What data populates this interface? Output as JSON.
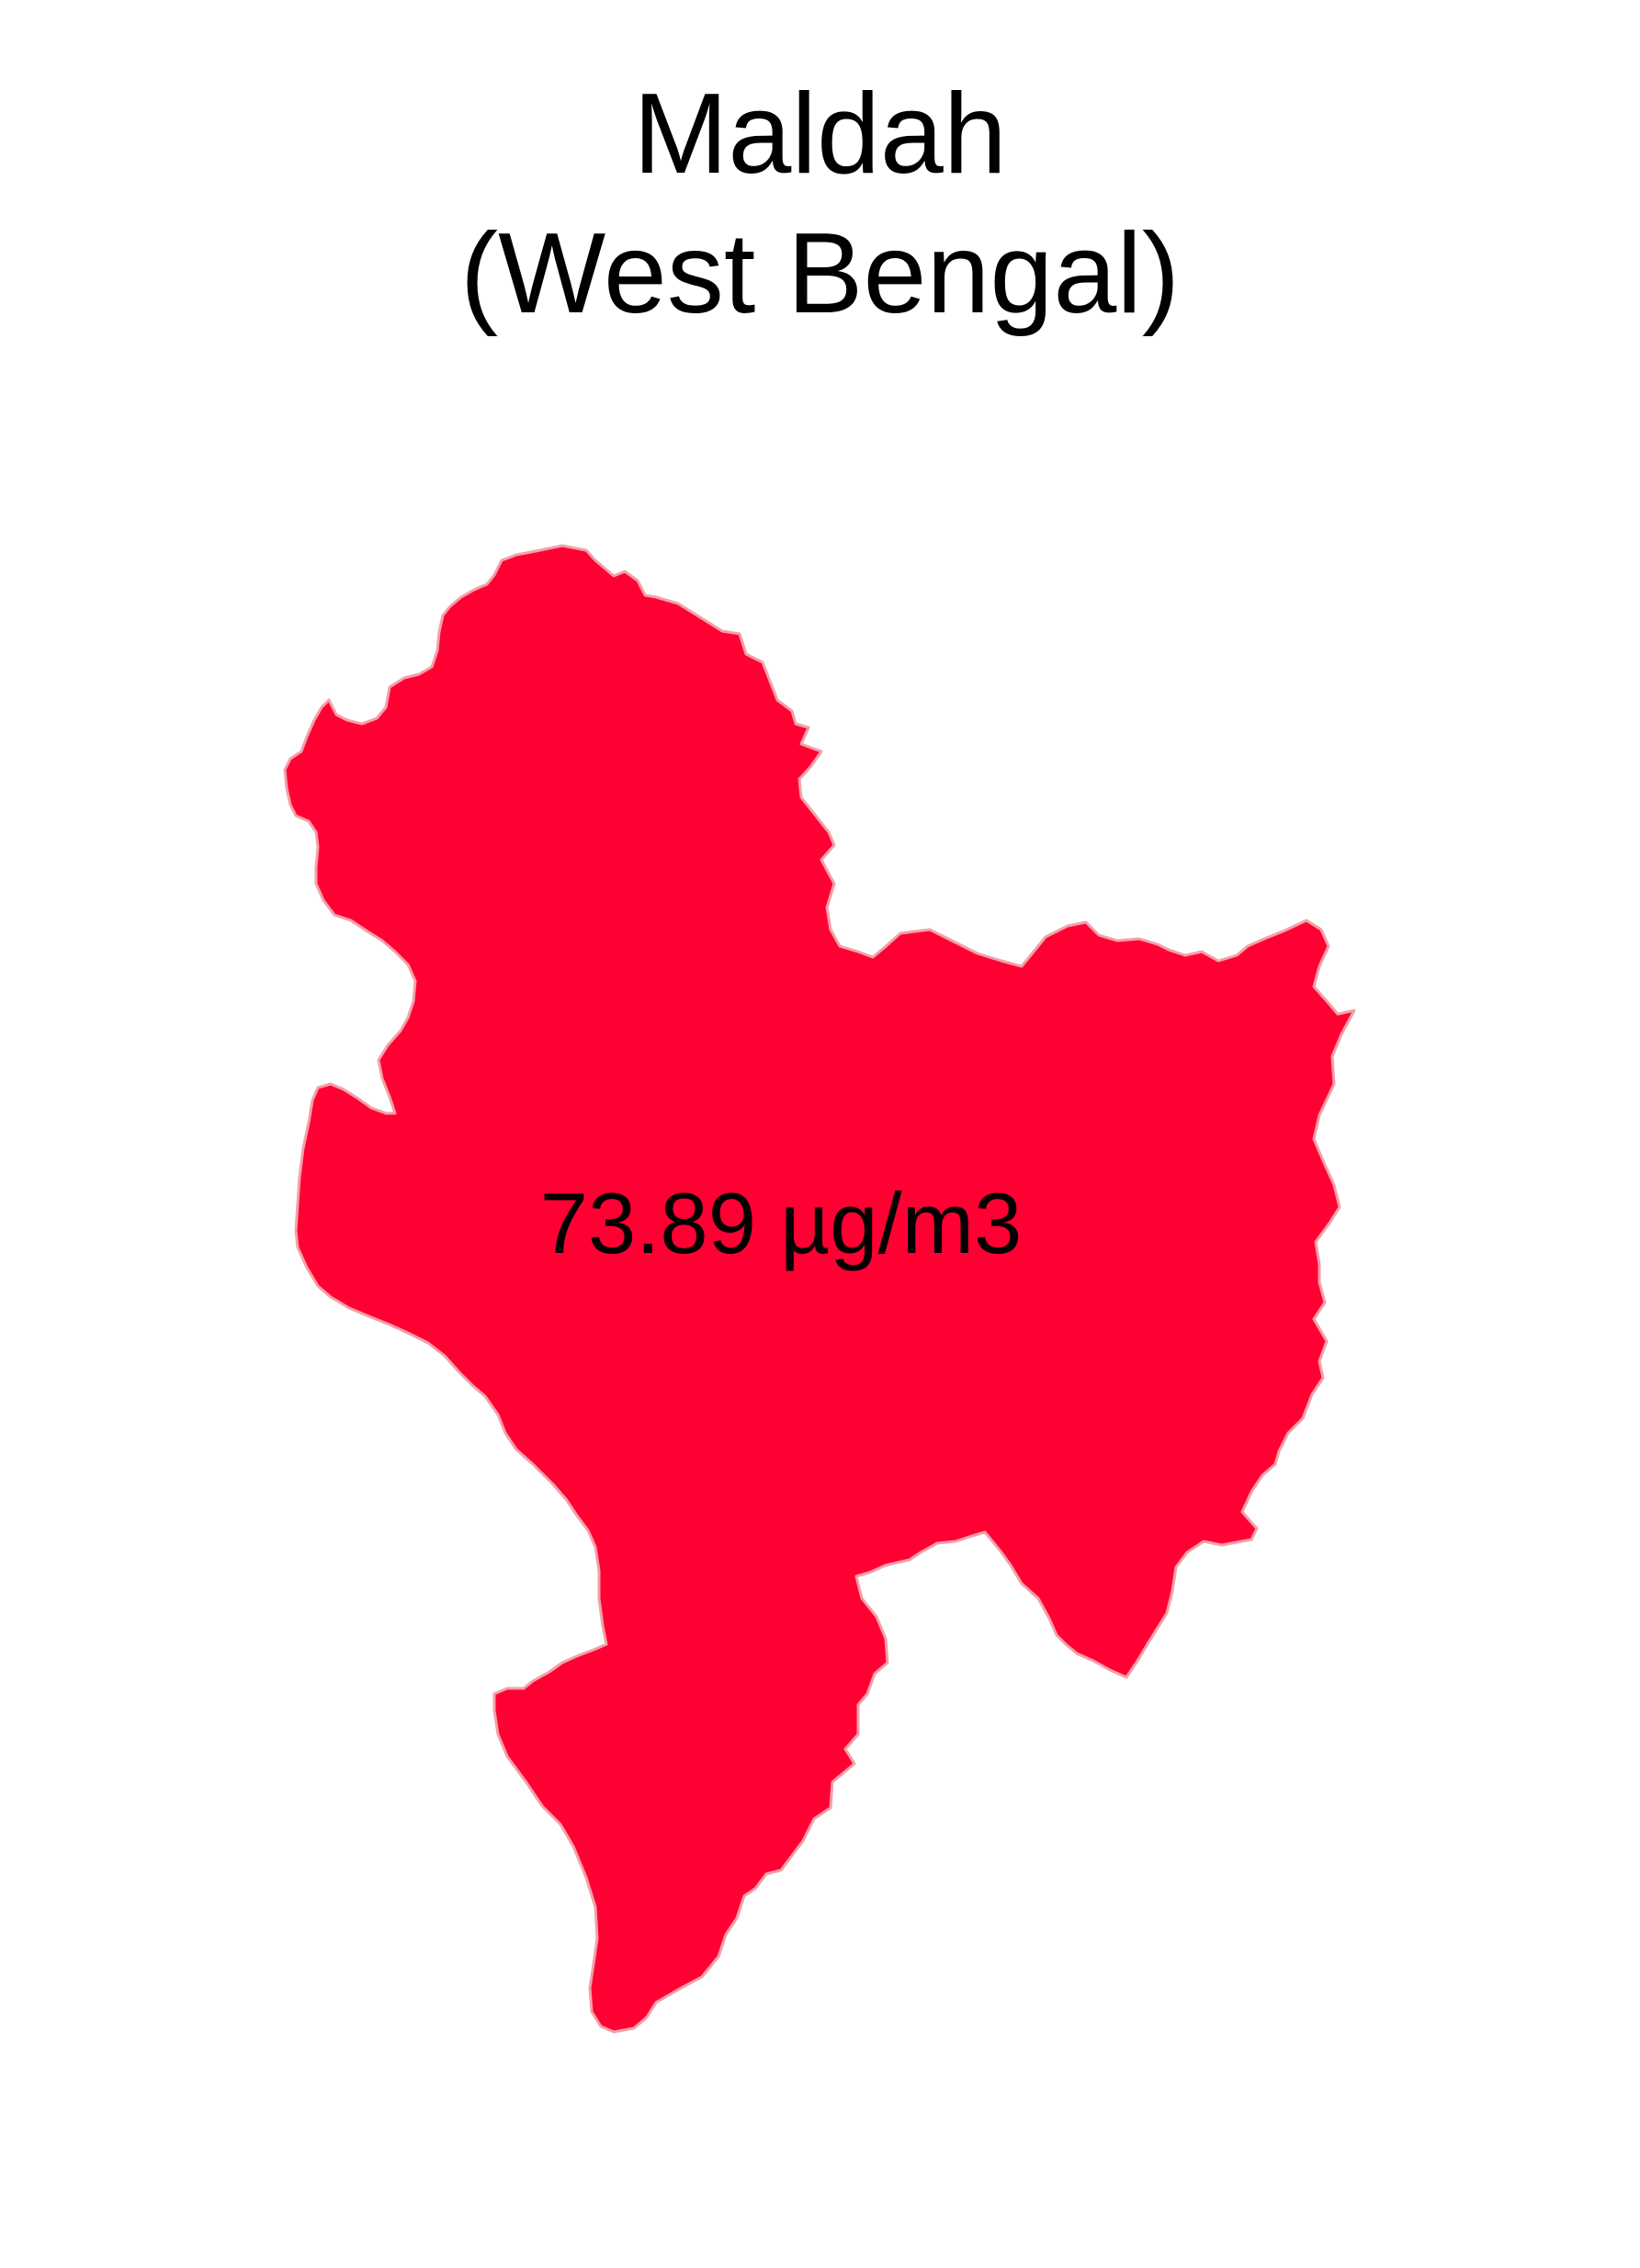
{
  "map": {
    "title_line1": "Maldah",
    "title_line2": "(West Bengal)",
    "region": {
      "name": "Maldah",
      "value_label": "73.89 µg/m3",
      "fill_color": "#FF0033",
      "border_color": "#F2A0A8"
    }
  }
}
